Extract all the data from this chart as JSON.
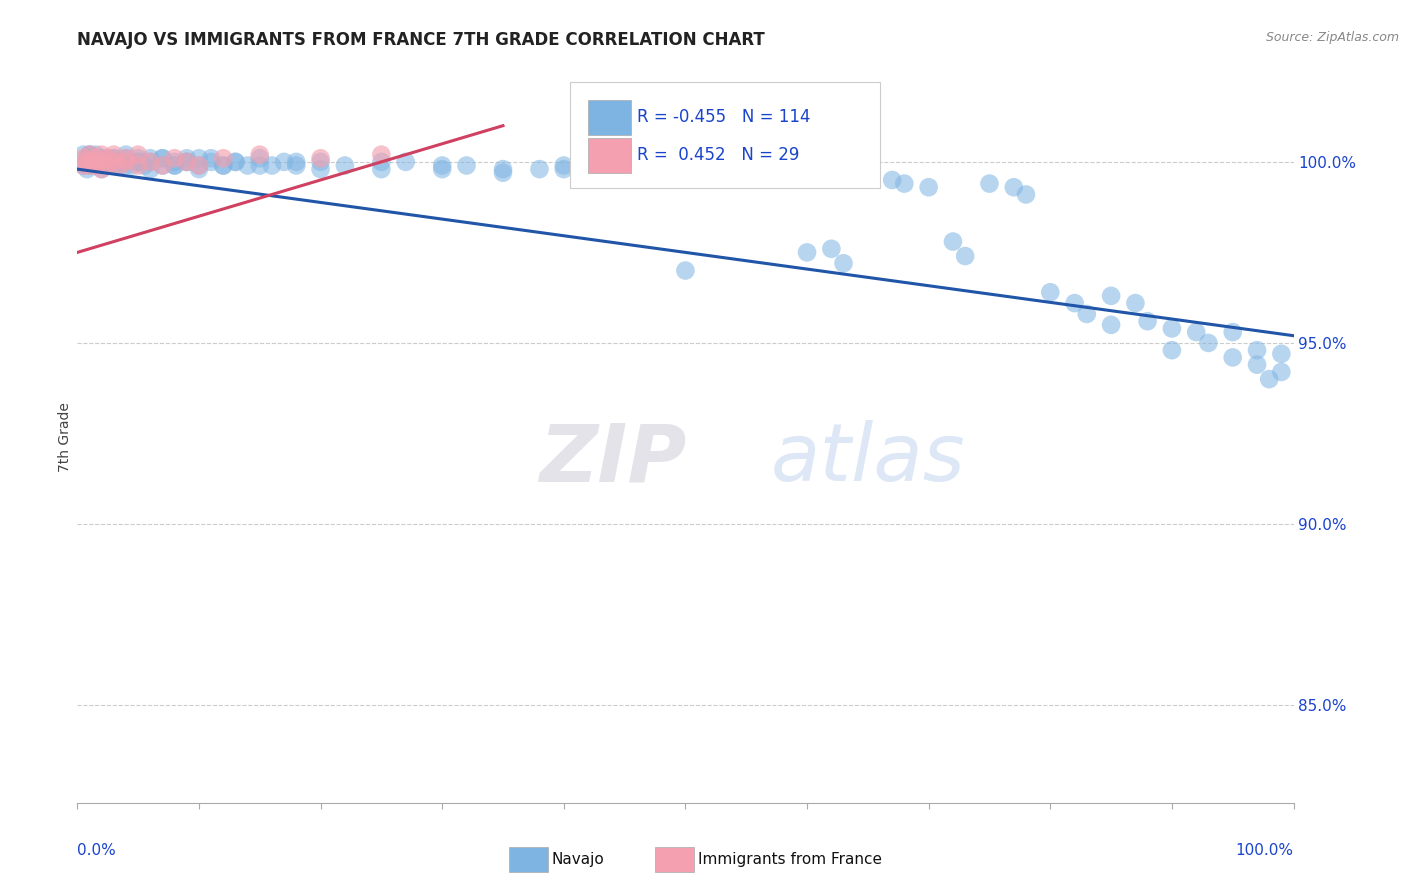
{
  "title": "NAVAJO VS IMMIGRANTS FROM FRANCE 7TH GRADE CORRELATION CHART",
  "source": "Source: ZipAtlas.com",
  "ylabel": "7th Grade",
  "navajo_R": -0.455,
  "navajo_N": 114,
  "france_R": 0.452,
  "france_N": 29,
  "navajo_color": "#7eb4e2",
  "navajo_line_color": "#2055a8",
  "france_color": "#f4a0b0",
  "france_line_color": "#d04060",
  "background_color": "#ffffff",
  "grid_color": "#cccccc",
  "ytick_labels": [
    "85.0%",
    "90.0%",
    "95.0%",
    "100.0%"
  ],
  "ytick_values": [
    0.85,
    0.9,
    0.95,
    1.0
  ],
  "xlim": [
    0.0,
    1.0
  ],
  "ylim": [
    0.823,
    1.025
  ],
  "watermark_zip": "ZIP",
  "watermark_atlas": "atlas",
  "legend_text_color": "#1a44cc",
  "title_color": "#222222",
  "axis_label_color": "#1a44cc",
  "nav_x": [
    0.01,
    0.01,
    0.01,
    0.015,
    0.015,
    0.02,
    0.02,
    0.02,
    0.025,
    0.025,
    0.025,
    0.03,
    0.03,
    0.035,
    0.04,
    0.04,
    0.04,
    0.045,
    0.05,
    0.05,
    0.055,
    0.06,
    0.06,
    0.07,
    0.07,
    0.08,
    0.08,
    0.09,
    0.09,
    0.1,
    0.1,
    0.11,
    0.12,
    0.13,
    0.14,
    0.15,
    0.16,
    0.17,
    0.18,
    0.2,
    0.22,
    0.25,
    0.27,
    0.3,
    0.32,
    0.35,
    0.38,
    0.4,
    0.42,
    0.45,
    0.48,
    0.5,
    0.52,
    0.55,
    0.57,
    0.6,
    0.62,
    0.63,
    0.65,
    0.67,
    0.68,
    0.7,
    0.72,
    0.73,
    0.75,
    0.77,
    0.78,
    0.8,
    0.82,
    0.83,
    0.85,
    0.85,
    0.87,
    0.88,
    0.9,
    0.9,
    0.92,
    0.93,
    0.95,
    0.95,
    0.97,
    0.97,
    0.98,
    0.99,
    0.99,
    0.005,
    0.005,
    0.008,
    0.008,
    0.01,
    0.01,
    0.015,
    0.02,
    0.02,
    0.025,
    0.03,
    0.035,
    0.04,
    0.05,
    0.06,
    0.07,
    0.08,
    0.09,
    0.1,
    0.11,
    0.12,
    0.13,
    0.15,
    0.18,
    0.2,
    0.25,
    0.3,
    0.35,
    0.4,
    0.5
  ],
  "nav_y": [
    1.002,
    0.999,
    1.001,
    1.0,
    1.002,
    0.999,
    1.001,
    1.0,
    0.999,
    1.001,
    1.0,
    0.999,
    1.001,
    1.0,
    0.999,
    1.001,
    1.0,
    0.999,
    1.001,
    1.0,
    0.999,
    1.001,
    1.0,
    0.999,
    1.001,
    1.0,
    0.999,
    1.001,
    1.0,
    0.999,
    1.001,
    1.0,
    0.999,
    1.0,
    0.999,
    1.001,
    0.999,
    1.0,
    0.999,
    1.0,
    0.999,
    0.998,
    1.0,
    0.998,
    0.999,
    0.997,
    0.998,
    0.998,
    0.997,
    0.997,
    0.996,
    0.996,
    0.997,
    0.997,
    0.997,
    0.975,
    0.976,
    0.972,
    0.996,
    0.995,
    0.994,
    0.993,
    0.978,
    0.974,
    0.994,
    0.993,
    0.991,
    0.964,
    0.961,
    0.958,
    0.963,
    0.955,
    0.961,
    0.956,
    0.954,
    0.948,
    0.953,
    0.95,
    0.953,
    0.946,
    0.944,
    0.948,
    0.94,
    0.947,
    0.942,
    1.002,
    0.999,
    1.001,
    0.998,
    1.0,
    1.002,
    0.999,
    1.001,
    0.998,
    1.0,
    1.001,
    0.999,
    1.002,
    1.0,
    0.998,
    1.001,
    0.999,
    1.0,
    0.998,
    1.001,
    0.999,
    1.0,
    0.999,
    1.0,
    0.998,
    1.0,
    0.999,
    0.998,
    0.999,
    0.97
  ],
  "fr_x": [
    0.005,
    0.005,
    0.008,
    0.01,
    0.01,
    0.012,
    0.015,
    0.015,
    0.018,
    0.02,
    0.02,
    0.025,
    0.025,
    0.03,
    0.03,
    0.035,
    0.04,
    0.04,
    0.05,
    0.05,
    0.06,
    0.07,
    0.08,
    0.09,
    0.1,
    0.12,
    0.15,
    0.2,
    0.25
  ],
  "fr_y": [
    0.999,
    1.001,
    1.0,
    0.999,
    1.002,
    1.0,
    1.001,
    0.999,
    1.0,
    1.002,
    0.998,
    1.001,
    0.999,
    1.0,
    1.002,
    0.999,
    1.001,
    1.0,
    0.999,
    1.002,
    1.0,
    0.999,
    1.001,
    1.0,
    0.999,
    1.001,
    1.002,
    1.001,
    1.002
  ]
}
